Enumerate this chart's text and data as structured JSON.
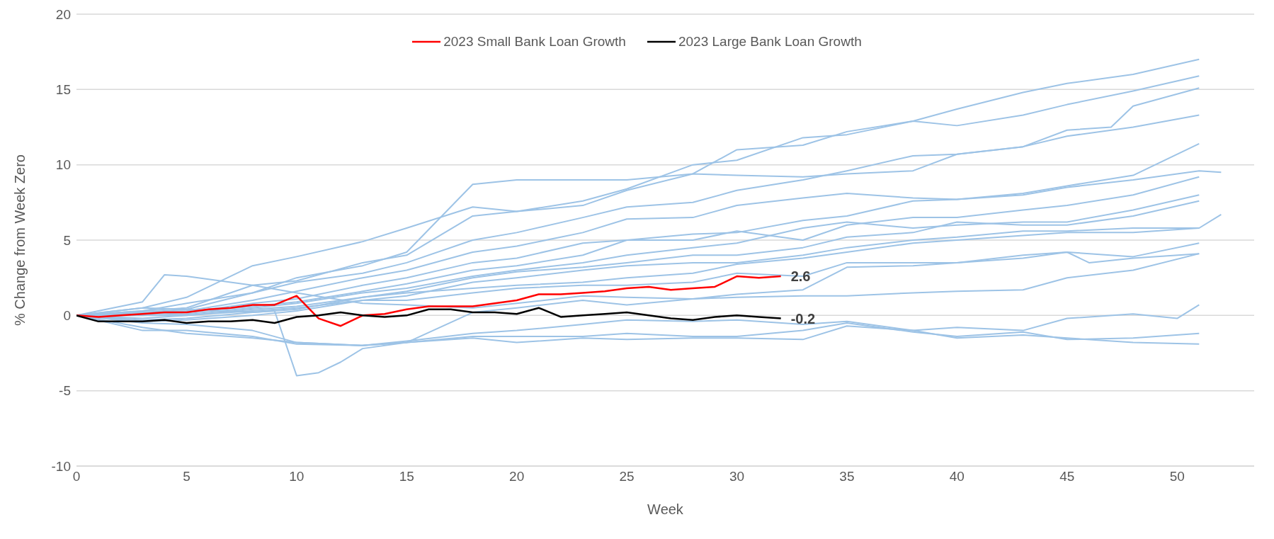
{
  "chart_data": {
    "type": "line",
    "xlabel": "Week",
    "ylabel": "% Change from Week Zero",
    "xlim": [
      0,
      53.5
    ],
    "xticks": [
      0,
      5,
      10,
      15,
      20,
      25,
      30,
      35,
      40,
      45,
      50
    ],
    "ylim": [
      -10,
      20
    ],
    "yticks": [
      -10,
      -5,
      0,
      5,
      10,
      15,
      20
    ],
    "grid": "y",
    "legend": "top",
    "marker": "none",
    "line_style": "solid",
    "series": [
      {
        "color": "#9dc3e6",
        "x": [
          0,
          3,
          5,
          8,
          10,
          13,
          15,
          18,
          20,
          23,
          25,
          28,
          30,
          33,
          35,
          38,
          40,
          43,
          45,
          48,
          51
        ],
        "values": [
          0,
          0.3,
          0.8,
          1.5,
          2.5,
          3.3,
          4.2,
          8.7,
          9.0,
          9.0,
          9.0,
          9.4,
          11.0,
          11.3,
          12.2,
          12.9,
          13.7,
          14.8,
          15.4,
          16.0,
          17.0
        ]
      },
      {
        "color": "#9dc3e6",
        "x": [
          0,
          3,
          5,
          8,
          10,
          13,
          15,
          18,
          20,
          23,
          25,
          28,
          30,
          33,
          35,
          38,
          40,
          43,
          45,
          48,
          51
        ],
        "values": [
          0,
          0.5,
          1.2,
          3.3,
          3.9,
          4.9,
          5.8,
          7.2,
          6.9,
          7.6,
          8.4,
          10.0,
          10.3,
          11.8,
          12.0,
          12.9,
          12.6,
          13.3,
          14.0,
          14.9,
          15.9
        ]
      },
      {
        "color": "#9dc3e6",
        "x": [
          0,
          3,
          5,
          8,
          10,
          13,
          15,
          18,
          20,
          23,
          25,
          28,
          30,
          33,
          35,
          38,
          40,
          43,
          45,
          47,
          48,
          51
        ],
        "values": [
          0,
          0.3,
          0.5,
          2.0,
          2.3,
          3.5,
          4.0,
          6.6,
          6.9,
          7.3,
          8.3,
          9.4,
          9.3,
          9.2,
          9.4,
          9.6,
          10.7,
          11.2,
          12.3,
          12.5,
          13.9,
          15.1
        ]
      },
      {
        "color": "#9dc3e6",
        "x": [
          0,
          3,
          5,
          8,
          10,
          13,
          15,
          18,
          20,
          23,
          25,
          28,
          30,
          33,
          35,
          38,
          40,
          43,
          45,
          48,
          51
        ],
        "values": [
          0,
          0.2,
          0.4,
          1.5,
          2.2,
          2.8,
          3.5,
          5.0,
          5.5,
          6.5,
          7.2,
          7.5,
          8.3,
          9.0,
          9.6,
          10.6,
          10.7,
          11.2,
          11.9,
          12.5,
          13.3
        ]
      },
      {
        "color": "#9dc3e6",
        "x": [
          0,
          3,
          5,
          8,
          10,
          13,
          15,
          18,
          20,
          23,
          25,
          28,
          30,
          33,
          35,
          38,
          40,
          43,
          45,
          48,
          51
        ],
        "values": [
          0,
          0.2,
          0.3,
          1.0,
          1.6,
          2.5,
          3.0,
          4.2,
          4.6,
          5.5,
          6.4,
          6.5,
          7.3,
          7.8,
          8.1,
          7.8,
          7.7,
          8.1,
          8.6,
          9.3,
          11.4
        ]
      },
      {
        "color": "#9dc3e6",
        "x": [
          0,
          3,
          5,
          8,
          10,
          13,
          15,
          18,
          20,
          23,
          25,
          28,
          30,
          33,
          35,
          38,
          40,
          43,
          45,
          48,
          51,
          52
        ],
        "values": [
          0,
          0.1,
          0.2,
          0.8,
          1.1,
          2.0,
          2.5,
          3.5,
          3.8,
          4.8,
          5.0,
          5.4,
          5.5,
          6.3,
          6.6,
          7.6,
          7.7,
          8.0,
          8.5,
          9.0,
          9.6,
          9.5
        ]
      },
      {
        "color": "#9dc3e6",
        "x": [
          0,
          3,
          5,
          8,
          10,
          13,
          15,
          18,
          20,
          23,
          25,
          28,
          30,
          33,
          35,
          38,
          40,
          43,
          45,
          48,
          51
        ],
        "values": [
          0,
          0.1,
          0.2,
          0.6,
          0.9,
          1.6,
          2.1,
          3.0,
          3.3,
          4.0,
          5.0,
          5.0,
          5.6,
          5.0,
          6.0,
          6.5,
          6.5,
          7.0,
          7.3,
          8.0,
          9.2
        ]
      },
      {
        "color": "#9dc3e6",
        "x": [
          0,
          3,
          5,
          8,
          10,
          13,
          15,
          18,
          20,
          23,
          25,
          28,
          30,
          33,
          35,
          38,
          40,
          43,
          45,
          48,
          51
        ],
        "values": [
          0,
          0,
          0.1,
          0.5,
          0.8,
          1.5,
          1.8,
          2.6,
          3.0,
          3.5,
          4.0,
          4.5,
          4.8,
          5.8,
          6.2,
          5.8,
          6.0,
          6.2,
          6.2,
          7.0,
          8.0
        ]
      },
      {
        "color": "#9dc3e6",
        "x": [
          0,
          3,
          5,
          8,
          10,
          13,
          15,
          18,
          20,
          23,
          25,
          28,
          30,
          33,
          35,
          38,
          40,
          43,
          45,
          48,
          51
        ],
        "values": [
          0,
          0,
          0,
          0.4,
          0.6,
          1.2,
          1.6,
          2.5,
          2.9,
          3.2,
          3.5,
          4.0,
          4.0,
          4.5,
          5.2,
          5.5,
          6.2,
          6.0,
          6.0,
          6.6,
          7.6
        ]
      },
      {
        "color": "#9dc3e6",
        "x": [
          0,
          3,
          5,
          8,
          10,
          13,
          15,
          18,
          20,
          23,
          25,
          28,
          30,
          33,
          35,
          38,
          40,
          43,
          45,
          48,
          51,
          52
        ],
        "values": [
          0,
          -0.2,
          0,
          0.3,
          0.5,
          1.0,
          1.3,
          2.2,
          2.5,
          3.0,
          3.3,
          3.5,
          3.5,
          4.0,
          4.5,
          5.0,
          5.2,
          5.6,
          5.6,
          5.8,
          5.8,
          6.7
        ]
      },
      {
        "color": "#9dc3e6",
        "x": [
          0,
          3,
          5,
          8,
          10,
          13,
          15,
          18,
          20,
          23,
          25,
          28,
          30,
          33,
          35,
          38,
          40,
          43,
          45,
          48,
          51
        ],
        "values": [
          0,
          -0.3,
          -0.2,
          0.2,
          0.4,
          1.2,
          1.5,
          1.8,
          2.0,
          2.2,
          2.5,
          2.8,
          3.4,
          3.8,
          4.2,
          4.8,
          5.0,
          5.3,
          5.5,
          5.5,
          5.8
        ]
      },
      {
        "color": "#9dc3e6",
        "x": [
          0,
          3,
          5,
          8,
          10,
          13,
          15,
          18,
          20,
          23,
          25,
          28,
          30,
          33,
          35,
          38,
          40,
          43,
          45,
          48,
          51
        ],
        "values": [
          0,
          -0.4,
          -0.3,
          0,
          0.3,
          1.0,
          1.0,
          1.5,
          1.8,
          2.0,
          2.0,
          2.2,
          2.8,
          2.6,
          3.5,
          3.5,
          3.5,
          3.8,
          4.2,
          3.9,
          4.8
        ]
      },
      {
        "color": "#9dc3e6",
        "x": [
          0,
          3,
          5,
          8,
          9,
          10,
          11,
          12,
          13,
          15,
          18,
          20,
          23,
          25,
          28,
          30,
          33,
          35,
          38,
          40,
          43,
          45,
          46,
          48,
          51
        ],
        "values": [
          0,
          0.5,
          0.4,
          0.2,
          0.3,
          -4.0,
          -3.8,
          -3.1,
          -2.2,
          -1.8,
          0.2,
          0.5,
          1.0,
          0.7,
          1.1,
          1.4,
          1.7,
          3.2,
          3.3,
          3.5,
          4.0,
          4.2,
          3.5,
          3.8,
          4.1
        ]
      },
      {
        "color": "#9dc3e6",
        "x": [
          0,
          3,
          4,
          5,
          8,
          10,
          13,
          15,
          18,
          20,
          23,
          25,
          28,
          30,
          33,
          35,
          38,
          40,
          43,
          45,
          48,
          51
        ],
        "values": [
          0,
          0.9,
          2.7,
          2.6,
          2.0,
          1.5,
          0.8,
          0.7,
          0.5,
          0.8,
          1.3,
          1.2,
          1.1,
          1.2,
          1.3,
          1.3,
          1.5,
          1.6,
          1.7,
          2.5,
          3.0,
          4.1
        ]
      },
      {
        "color": "#9dc3e6",
        "x": [
          0,
          3,
          5,
          8,
          10,
          13,
          15,
          18,
          20,
          23,
          25,
          28,
          30,
          33,
          35,
          38,
          40,
          43,
          45,
          48,
          50,
          51
        ],
        "values": [
          0,
          -0.5,
          -0.6,
          -1.0,
          -1.8,
          -2.0,
          -1.7,
          -1.2,
          -1.0,
          -0.6,
          -0.3,
          -0.4,
          -0.3,
          -0.6,
          -0.4,
          -1.0,
          -0.8,
          -1.0,
          -0.2,
          0.1,
          -0.2,
          0.7
        ]
      },
      {
        "color": "#9dc3e6",
        "x": [
          0,
          3,
          5,
          8,
          10,
          13,
          15,
          18,
          20,
          23,
          25,
          28,
          30,
          33,
          35,
          38,
          40,
          43,
          45,
          48,
          51
        ],
        "values": [
          0,
          -0.8,
          -1.2,
          -1.5,
          -1.8,
          -2.0,
          -1.8,
          -1.4,
          -1.4,
          -1.4,
          -1.2,
          -1.4,
          -1.4,
          -1.0,
          -0.5,
          -1.1,
          -1.4,
          -1.1,
          -1.6,
          -1.5,
          -1.2
        ]
      },
      {
        "color": "#9dc3e6",
        "x": [
          0,
          3,
          5,
          8,
          10,
          13,
          15,
          18,
          20,
          23,
          25,
          28,
          30,
          33,
          35,
          38,
          40,
          43,
          45,
          48,
          51
        ],
        "values": [
          0,
          -1.0,
          -1.0,
          -1.4,
          -1.9,
          -2.0,
          -1.8,
          -1.5,
          -1.8,
          -1.5,
          -1.6,
          -1.5,
          -1.5,
          -1.6,
          -0.7,
          -1.0,
          -1.5,
          -1.3,
          -1.5,
          -1.8,
          -1.9
        ]
      },
      {
        "name": "2023 Small Bank Loan Growth",
        "color": "#ff0000",
        "x": [
          0,
          1,
          2,
          3,
          4,
          5,
          6,
          7,
          8,
          9,
          10,
          11,
          12,
          13,
          14,
          15,
          16,
          17,
          18,
          19,
          20,
          21,
          22,
          23,
          24,
          25,
          26,
          27,
          28,
          29,
          30,
          31,
          32
        ],
        "values": [
          0,
          -0.1,
          0,
          0.1,
          0.2,
          0.2,
          0.4,
          0.5,
          0.7,
          0.7,
          1.3,
          -0.2,
          -0.7,
          0,
          0.1,
          0.4,
          0.6,
          0.6,
          0.6,
          0.8,
          1.0,
          1.4,
          1.4,
          1.5,
          1.6,
          1.8,
          1.9,
          1.7,
          1.8,
          1.9,
          2.6,
          2.5,
          2.6
        ],
        "value_labels": [
          null,
          null,
          null,
          null,
          null,
          null,
          null,
          null,
          null,
          null,
          null,
          null,
          null,
          null,
          null,
          null,
          null,
          null,
          null,
          null,
          null,
          null,
          null,
          null,
          null,
          null,
          null,
          null,
          null,
          null,
          null,
          null,
          "2.6"
        ]
      },
      {
        "name": "2023 Large Bank Loan Growth",
        "color": "#000000",
        "x": [
          0,
          1,
          2,
          3,
          4,
          5,
          6,
          7,
          8,
          9,
          10,
          11,
          12,
          13,
          14,
          15,
          16,
          17,
          18,
          19,
          20,
          21,
          22,
          23,
          24,
          25,
          26,
          27,
          28,
          29,
          30,
          31,
          32
        ],
        "values": [
          0,
          -0.4,
          -0.4,
          -0.4,
          -0.3,
          -0.5,
          -0.4,
          -0.4,
          -0.3,
          -0.5,
          -0.1,
          0,
          0.2,
          0,
          -0.1,
          0,
          0.4,
          0.4,
          0.2,
          0.2,
          0.1,
          0.5,
          -0.1,
          0,
          0.1,
          0.2,
          0,
          -0.2,
          -0.3,
          -0.1,
          0,
          -0.1,
          -0.2
        ],
        "value_labels": [
          null,
          null,
          null,
          null,
          null,
          null,
          null,
          null,
          null,
          null,
          null,
          null,
          null,
          null,
          null,
          null,
          null,
          null,
          null,
          null,
          null,
          null,
          null,
          null,
          null,
          null,
          null,
          null,
          null,
          null,
          null,
          null,
          "-0.2"
        ]
      }
    ]
  }
}
